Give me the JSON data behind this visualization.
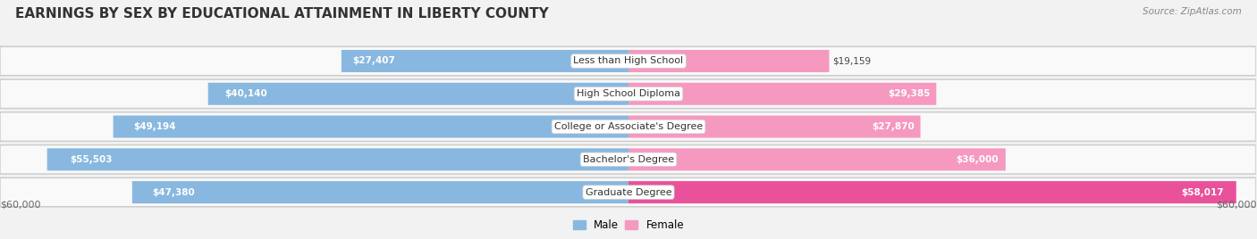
{
  "title": "EARNINGS BY SEX BY EDUCATIONAL ATTAINMENT IN LIBERTY COUNTY",
  "source": "Source: ZipAtlas.com",
  "categories": [
    "Less than High School",
    "High School Diploma",
    "College or Associate's Degree",
    "Bachelor's Degree",
    "Graduate Degree"
  ],
  "male_values": [
    27407,
    40140,
    49194,
    55503,
    47380
  ],
  "female_values": [
    19159,
    29385,
    27870,
    36000,
    58017
  ],
  "male_color": "#88b8e0",
  "female_color": "#f599c0",
  "female_color_last": "#e9529a",
  "male_label": "Male",
  "female_label": "Female",
  "x_max": 60000,
  "x_label_left": "$60,000",
  "x_label_right": "$60,000",
  "background_color": "#f2f2f2",
  "row_bg_color": "#ffffff",
  "row_shadow_color": "#d0d0d0",
  "title_fontsize": 11,
  "bar_height": 0.72,
  "title_color": "#333333",
  "source_color": "#888888",
  "label_dark_color": "#444444",
  "label_white_color": "#ffffff",
  "cat_label_fontsize": 8,
  "val_label_fontsize": 7.5
}
